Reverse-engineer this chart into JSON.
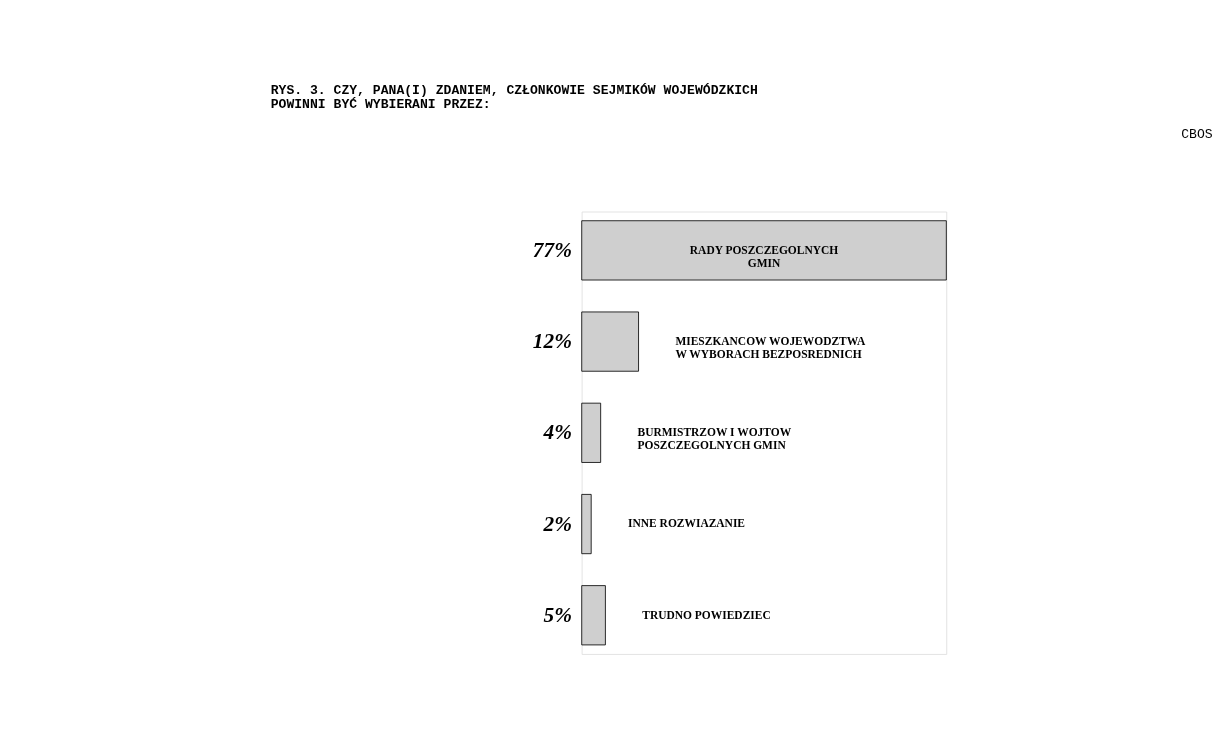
{
  "chart_data": {
    "type": "bar",
    "orientation": "horizontal",
    "title": "RYS. 3. CZY, PANA(I) ZDANIEM, CZŁONKOWIE SEJMIKÓW WOJEWÓDZKICH\n        POWINNI BYĆ WYBIERANI PRZEZ:",
    "categories": [
      "RADY POSZCZEGOLNYCH\nGMIN",
      "MIESZKANCOW WOJEWODZTWA\nW WYBORACH BEZPOSREDNICH",
      "BURMISTRZOW I WOJTOW\nPOSZCZEGOLNYCH GMIN",
      "INNE ROZWIAZANIE",
      "TRUDNO POWIEDZIEC"
    ],
    "values": [
      77,
      12,
      4,
      2,
      5
    ],
    "value_labels": [
      "77%",
      "12%",
      "4%",
      "2%",
      "5%"
    ],
    "color": "#cfcfcf",
    "annotations": [
      "CBOS"
    ]
  }
}
